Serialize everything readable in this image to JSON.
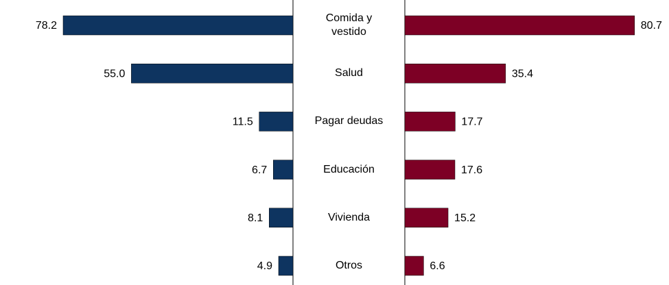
{
  "chart_data": {
    "type": "butterfly",
    "categories": [
      "Comida y\nvestido",
      "Salud",
      "Pagar deudas",
      "Educación",
      "Vivienda",
      "Otros"
    ],
    "xlim": [
      0,
      81
    ],
    "series": [
      {
        "color": "#0e3460",
        "values": [
          78.2,
          55.0,
          11.5,
          6.7,
          8.1,
          4.9
        ],
        "value_labels": [
          "78.2",
          "55.0",
          "11.5",
          "6.7",
          "8.1",
          "4.9"
        ]
      },
      {
        "color": "#7d0025",
        "values": [
          80.7,
          35.4,
          17.7,
          17.6,
          15.2,
          6.6
        ],
        "value_labels": [
          "80.7",
          "35.4",
          "17.7",
          "17.6",
          "15.2",
          "6.6"
        ]
      }
    ]
  }
}
